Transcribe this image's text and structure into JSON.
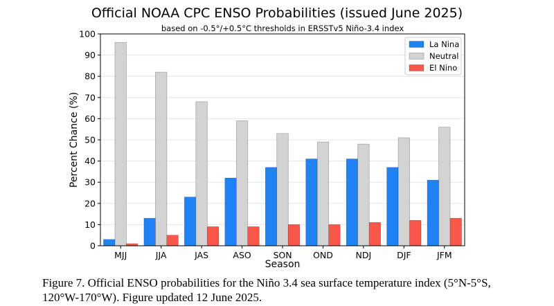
{
  "chart_data": {
    "type": "bar",
    "title": "Official NOAA CPC ENSO Probabilities (issued June 2025)",
    "subtitle": "based on -0.5°/+0.5°C thresholds in ERSSTv5 Niño-3.4 index",
    "xlabel": "Season",
    "ylabel": "Percent Chance (%)",
    "ylim": [
      0,
      100
    ],
    "yticks": [
      0,
      10,
      20,
      30,
      40,
      50,
      60,
      70,
      80,
      90,
      100
    ],
    "grid": true,
    "legend_position": "top-right",
    "categories": [
      "MJJ",
      "JJA",
      "JAS",
      "ASO",
      "SON",
      "OND",
      "NDJ",
      "DJF",
      "JFM"
    ],
    "series": [
      {
        "name": "La Nina",
        "color": "#1f83f5",
        "values": [
          3,
          13,
          23,
          32,
          37,
          41,
          41,
          37,
          31
        ]
      },
      {
        "name": "Neutral",
        "color": "#d3d3d3",
        "values": [
          96,
          82,
          68,
          59,
          53,
          49,
          48,
          51,
          56
        ]
      },
      {
        "name": "El Nino",
        "color": "#f8574a",
        "values": [
          1,
          5,
          9,
          9,
          10,
          10,
          11,
          12,
          13
        ]
      }
    ]
  },
  "caption": "Figure 7. Official ENSO probabilities for the Niño 3.4 sea surface temperature index (5°N-5°S, 120°W-170°W). Figure updated 12 June 2025."
}
